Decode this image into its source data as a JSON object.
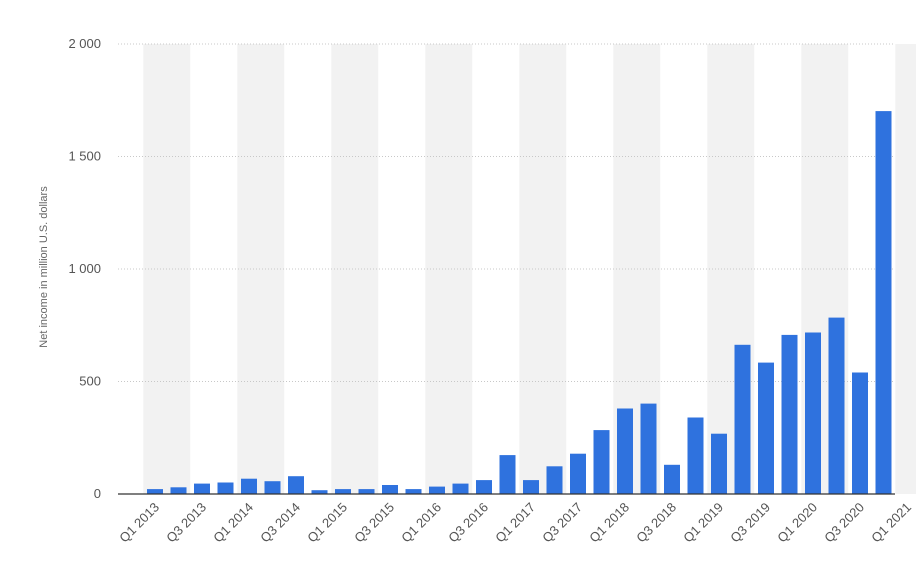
{
  "chart_data": {
    "type": "bar",
    "title": "",
    "xlabel": "",
    "ylabel": "Net income in million U.S. dollars",
    "ylim": [
      0,
      2000
    ],
    "yticks": [
      0,
      500,
      1000,
      1500,
      2000
    ],
    "ytick_labels": [
      "0",
      "500",
      "1 000",
      "1 500",
      "2 000"
    ],
    "grid": true,
    "grid_style": "dotted",
    "alternating_band_colors": [
      "#f2f2f2",
      "#ffffff"
    ],
    "bar_color": "#2f72de",
    "categories": [
      "Q1 2013",
      "Q2 2013",
      "Q3 2013",
      "Q4 2013",
      "Q1 2014",
      "Q2 2014",
      "Q3 2014",
      "Q4 2014",
      "Q1 2015",
      "Q2 2015",
      "Q3 2015",
      "Q4 2015",
      "Q1 2016",
      "Q2 2016",
      "Q3 2016",
      "Q4 2016",
      "Q1 2017",
      "Q2 2017",
      "Q3 2017",
      "Q4 2017",
      "Q1 2018",
      "Q2 2018",
      "Q3 2018",
      "Q4 2018",
      "Q1 2019",
      "Q2 2019",
      "Q3 2019",
      "Q4 2019",
      "Q1 2020",
      "Q2 2020",
      "Q3 2020",
      "Q4 2020",
      "Q1 2021"
    ],
    "xtick_labels": [
      "Q1 2013",
      "Q3 2013",
      "Q1 2014",
      "Q3 2014",
      "Q1 2015",
      "Q3 2015",
      "Q1 2016",
      "Q3 2016",
      "Q1 2017",
      "Q3 2017",
      "Q1 2018",
      "Q3 2018",
      "Q1 2019",
      "Q3 2019",
      "Q1 2020",
      "Q3 2020",
      "Q1 2021"
    ],
    "values": [
      22,
      30,
      46,
      51,
      68,
      57,
      79,
      17,
      22,
      22,
      40,
      22,
      33,
      46,
      62,
      173,
      62,
      123,
      179,
      284,
      380,
      402,
      130,
      340,
      268,
      663,
      584,
      707,
      718,
      784,
      540,
      1702,
      null
    ]
  }
}
